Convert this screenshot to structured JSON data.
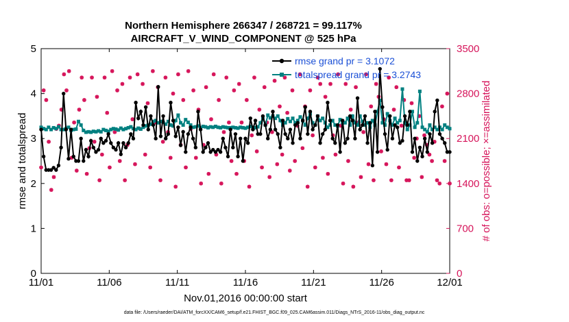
{
  "colors": {
    "rmse": "#000000",
    "spread": "#008080",
    "obs": "#d6145a",
    "legend_text": "#1a4fd6",
    "axis": "#000000"
  },
  "chart_data": {
    "type": "line",
    "title": [
      "Northern Hemisphere 266347 / 268721 = 99.117%",
      "AIRCRAFT_V_WIND_COMPONENT @ 525 hPa"
    ],
    "xlabel": "Nov.01,2016 00:00:00 start",
    "ylabel_left": "rmse and totalspread",
    "ylabel_right": "# of obs: o=possible; ×=assimilated",
    "footnote": "data file: /Users/raeder/DAI/ATM_forcXX/CAM6_setup/f.e21.FHIST_BGC.f09_025.CAM6assim.011/Diags_NTrS_2016-11/obs_diag_output.nc",
    "x_tick_labels": [
      "11/01",
      "11/06",
      "11/11",
      "11/16",
      "11/21",
      "11/26",
      "12/01"
    ],
    "x_tick_days": [
      0,
      5,
      10,
      15,
      20,
      25,
      30
    ],
    "xlim_days": [
      0,
      30
    ],
    "ylim_left": [
      0,
      5
    ],
    "y_ticks_left": [
      "0",
      "1",
      "2",
      "3",
      "4",
      "5"
    ],
    "ylim_right": [
      0,
      3500
    ],
    "y_ticks_right": [
      "0",
      "700",
      "1400",
      "2100",
      "2800",
      "3500"
    ],
    "legend": [
      "rmse grand pr = 3.1072",
      "totalspread grand pr = 3.2743"
    ],
    "legend_position": "top-right",
    "series": [
      {
        "name": "rmse",
        "axis": "left",
        "values": [
          3.2,
          2.6,
          2.3,
          2.3,
          2.3,
          2.35,
          2.3,
          2.4,
          2.8,
          4.0,
          3.2,
          2.55,
          3.2,
          2.6,
          2.5,
          2.5,
          3.0,
          2.5,
          2.75,
          2.6,
          2.95,
          2.8,
          2.7,
          2.75,
          3.0,
          2.9,
          2.95,
          3.1,
          2.9,
          2.8,
          2.75,
          2.9,
          2.65,
          2.9,
          2.8,
          2.9,
          3.1,
          3.0,
          3.8,
          3.45,
          3.6,
          3.3,
          3.7,
          3.2,
          3.5,
          3.3,
          3.0,
          4.15,
          3.05,
          3.5,
          3.0,
          3.1,
          3.8,
          3.4,
          3.05,
          3.25,
          2.85,
          3.15,
          2.7,
          3.1,
          3.25,
          3.0,
          2.8,
          3.6,
          3.2,
          2.7,
          2.8,
          2.9,
          2.7,
          2.75,
          2.7,
          2.75,
          2.7,
          3.0,
          2.8,
          2.6,
          3.2,
          2.8,
          3.1,
          2.6,
          3.0,
          2.5,
          3.0,
          2.9,
          3.45,
          3.2,
          3.4,
          3.1,
          3.1,
          3.5,
          3.3,
          3.0,
          3.2,
          3.6,
          3.2,
          3.1,
          2.8,
          3.4,
          3.1,
          3.0,
          3.2,
          2.9,
          3.3,
          3.35,
          3.0,
          3.4,
          3.7,
          3.1,
          3.6,
          3.2,
          3.3,
          3.5,
          2.9,
          3.1,
          3.2,
          3.8,
          3.4,
          3.0,
          2.9,
          3.3,
          2.7,
          3.4,
          2.9,
          3.0,
          3.5,
          3.4,
          3.0,
          3.9,
          3.2,
          3.3,
          3.5,
          2.9,
          3.35,
          2.4,
          3.6,
          2.7,
          4.55,
          3.7,
          3.1,
          2.75,
          3.5,
          3.0,
          3.3,
          3.25,
          2.9,
          2.95,
          3.5,
          3.3,
          3.6,
          2.7,
          3.0,
          2.5,
          2.8,
          2.6,
          3.0,
          2.7,
          3.1,
          2.9,
          3.6,
          3.85,
          3.1,
          3.0,
          2.9,
          2.7,
          2.7
        ]
      },
      {
        "name": "totalspread",
        "axis": "left",
        "values": [
          3.25,
          3.22,
          3.2,
          3.25,
          3.2,
          3.24,
          3.22,
          3.26,
          3.2,
          3.2,
          3.22,
          3.25,
          3.18,
          3.2,
          3.21,
          3.38,
          3.3,
          3.18,
          3.14,
          3.15,
          3.14,
          3.16,
          3.15,
          3.17,
          3.15,
          3.2,
          3.18,
          3.16,
          3.2,
          3.22,
          3.21,
          3.19,
          3.23,
          3.2,
          3.22,
          3.24,
          3.26,
          3.22,
          3.2,
          3.23,
          3.21,
          3.25,
          3.28,
          3.3,
          3.32,
          3.38,
          3.4,
          3.35,
          3.38,
          3.36,
          3.32,
          3.38,
          3.3,
          3.28,
          3.4,
          3.52,
          3.35,
          3.3,
          3.42,
          3.36,
          3.3,
          3.25,
          3.26,
          3.28,
          3.24,
          3.27,
          3.26,
          3.24,
          3.26,
          3.25,
          3.27,
          3.25,
          3.24,
          3.26,
          3.25,
          3.24,
          3.24,
          3.25,
          3.24,
          3.23,
          3.25,
          3.24,
          3.23,
          3.25,
          3.27,
          3.25,
          3.24,
          3.26,
          3.35,
          3.45,
          3.3,
          3.52,
          3.46,
          3.5,
          3.45,
          3.5,
          3.4,
          3.3,
          3.35,
          3.44,
          3.38,
          3.45,
          3.35,
          3.4,
          3.48,
          3.4,
          3.3,
          3.45,
          3.55,
          3.35,
          3.3,
          3.5,
          3.4,
          3.45,
          3.35,
          3.25,
          3.3,
          3.4,
          3.3,
          3.28,
          3.42,
          3.35,
          3.35,
          3.45,
          3.3,
          3.5,
          3.35,
          3.3,
          3.5,
          3.38,
          3.3,
          3.35,
          3.25,
          3.4,
          3.3,
          3.6,
          3.85,
          3.35,
          3.3,
          3.55,
          3.4,
          3.3,
          3.45,
          3.35,
          3.4,
          4.1,
          3.35,
          3.2,
          3.3,
          3.6,
          3.25,
          3.35,
          4.05,
          3.25,
          3.2,
          3.15,
          3.3,
          3.2,
          3.25,
          3.2,
          3.25,
          3.2,
          3.3,
          3.25,
          3.22
        ]
      },
      {
        "name": "obs possible (o)",
        "axis": "right",
        "values": [
          1650,
          2850,
          2700,
          2050,
          1300,
          1500,
          2250,
          2300,
          2550,
          3100,
          2850,
          3150,
          1800,
          2350,
          1600,
          2550,
          3050,
          2700,
          1550,
          1950,
          3050,
          2050,
          2750,
          1450,
          1850,
          3050,
          2500,
          1650,
          3150,
          2200,
          2850,
          1750,
          2950,
          1450,
          2000,
          3050,
          2400,
          1700,
          3100,
          2250,
          2950,
          1850,
          2650,
          1650,
          3150,
          2350,
          2900,
          1450,
          2050,
          3050,
          2200,
          1800,
          2800,
          1350,
          3100,
          2000,
          2700,
          1650,
          3150,
          2250,
          2850,
          1800,
          2550,
          1400,
          2000,
          2900,
          1550,
          2400,
          3100,
          1850,
          2700,
          1400,
          2200,
          3050,
          2350,
          1750,
          2850,
          1550,
          2950,
          2350,
          1750,
          2700,
          1350,
          2150,
          3050,
          1900,
          2550,
          1650,
          2900,
          2350,
          1500,
          2200,
          3000,
          1700,
          2600,
          1850,
          3050,
          2500,
          1600,
          2850,
          1750,
          2300,
          3100,
          1950,
          2600,
          1350,
          2850,
          2150,
          1650,
          3050,
          2950,
          1800,
          2750,
          1550,
          2950,
          2150,
          1850,
          3100,
          2300,
          1400,
          2950,
          1750,
          2550,
          1350,
          2900,
          2350,
          1500,
          2200,
          3100,
          1700,
          2600,
          1450,
          2950,
          2750,
          1900,
          2400,
          1700,
          3050,
          1450,
          2550,
          2900,
          1650,
          2300,
          2700,
          1450,
          1450,
          2650,
          1800,
          2100,
          2450,
          1500,
          2150,
          2000,
          1850,
          1750,
          2050,
          1450,
          1400,
          2600,
          1750,
          2800,
          1400
        ]
      }
    ]
  }
}
